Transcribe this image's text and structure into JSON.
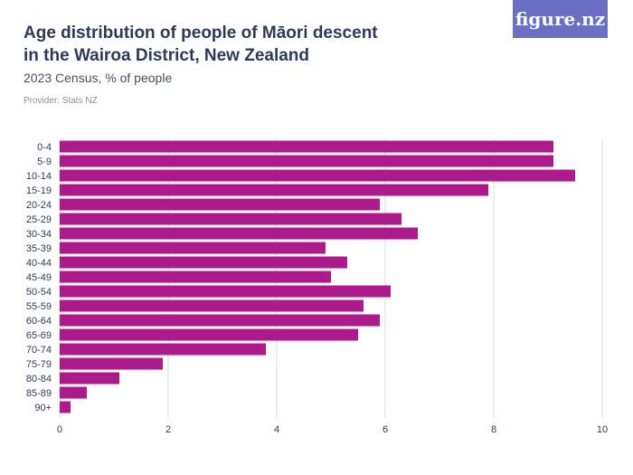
{
  "header": {
    "title": "Age distribution of people of Māori descent in the Wairoa District, New Zealand",
    "subtitle": "2023 Census, % of people",
    "provider": "Provider: Stats NZ",
    "logo_text": "figure.nz"
  },
  "colors": {
    "bar": "#ad1a8c",
    "grid": "#d9dbe0",
    "text": "#2e3a5c",
    "logo_bg": "#6a6fc4"
  },
  "chart_data": {
    "type": "bar",
    "orientation": "horizontal",
    "title": "Age distribution of people of Māori descent in the Wairoa District, New Zealand",
    "subtitle": "2023 Census, % of people",
    "xlabel": "",
    "ylabel": "",
    "categories": [
      "0-4",
      "5-9",
      "10-14",
      "15-19",
      "20-24",
      "25-29",
      "30-34",
      "35-39",
      "40-44",
      "45-49",
      "50-54",
      "55-59",
      "60-64",
      "65-69",
      "70-74",
      "75-79",
      "80-84",
      "85-89",
      "90+"
    ],
    "values": [
      9.1,
      9.1,
      9.5,
      7.9,
      5.9,
      6.3,
      6.6,
      4.9,
      5.3,
      5.0,
      6.1,
      5.6,
      5.9,
      5.5,
      3.8,
      1.9,
      1.1,
      0.5,
      0.2
    ],
    "xlim": [
      0,
      10
    ],
    "xticks": [
      0,
      2,
      4,
      6,
      8,
      10
    ],
    "grid": true,
    "legend": "none"
  }
}
